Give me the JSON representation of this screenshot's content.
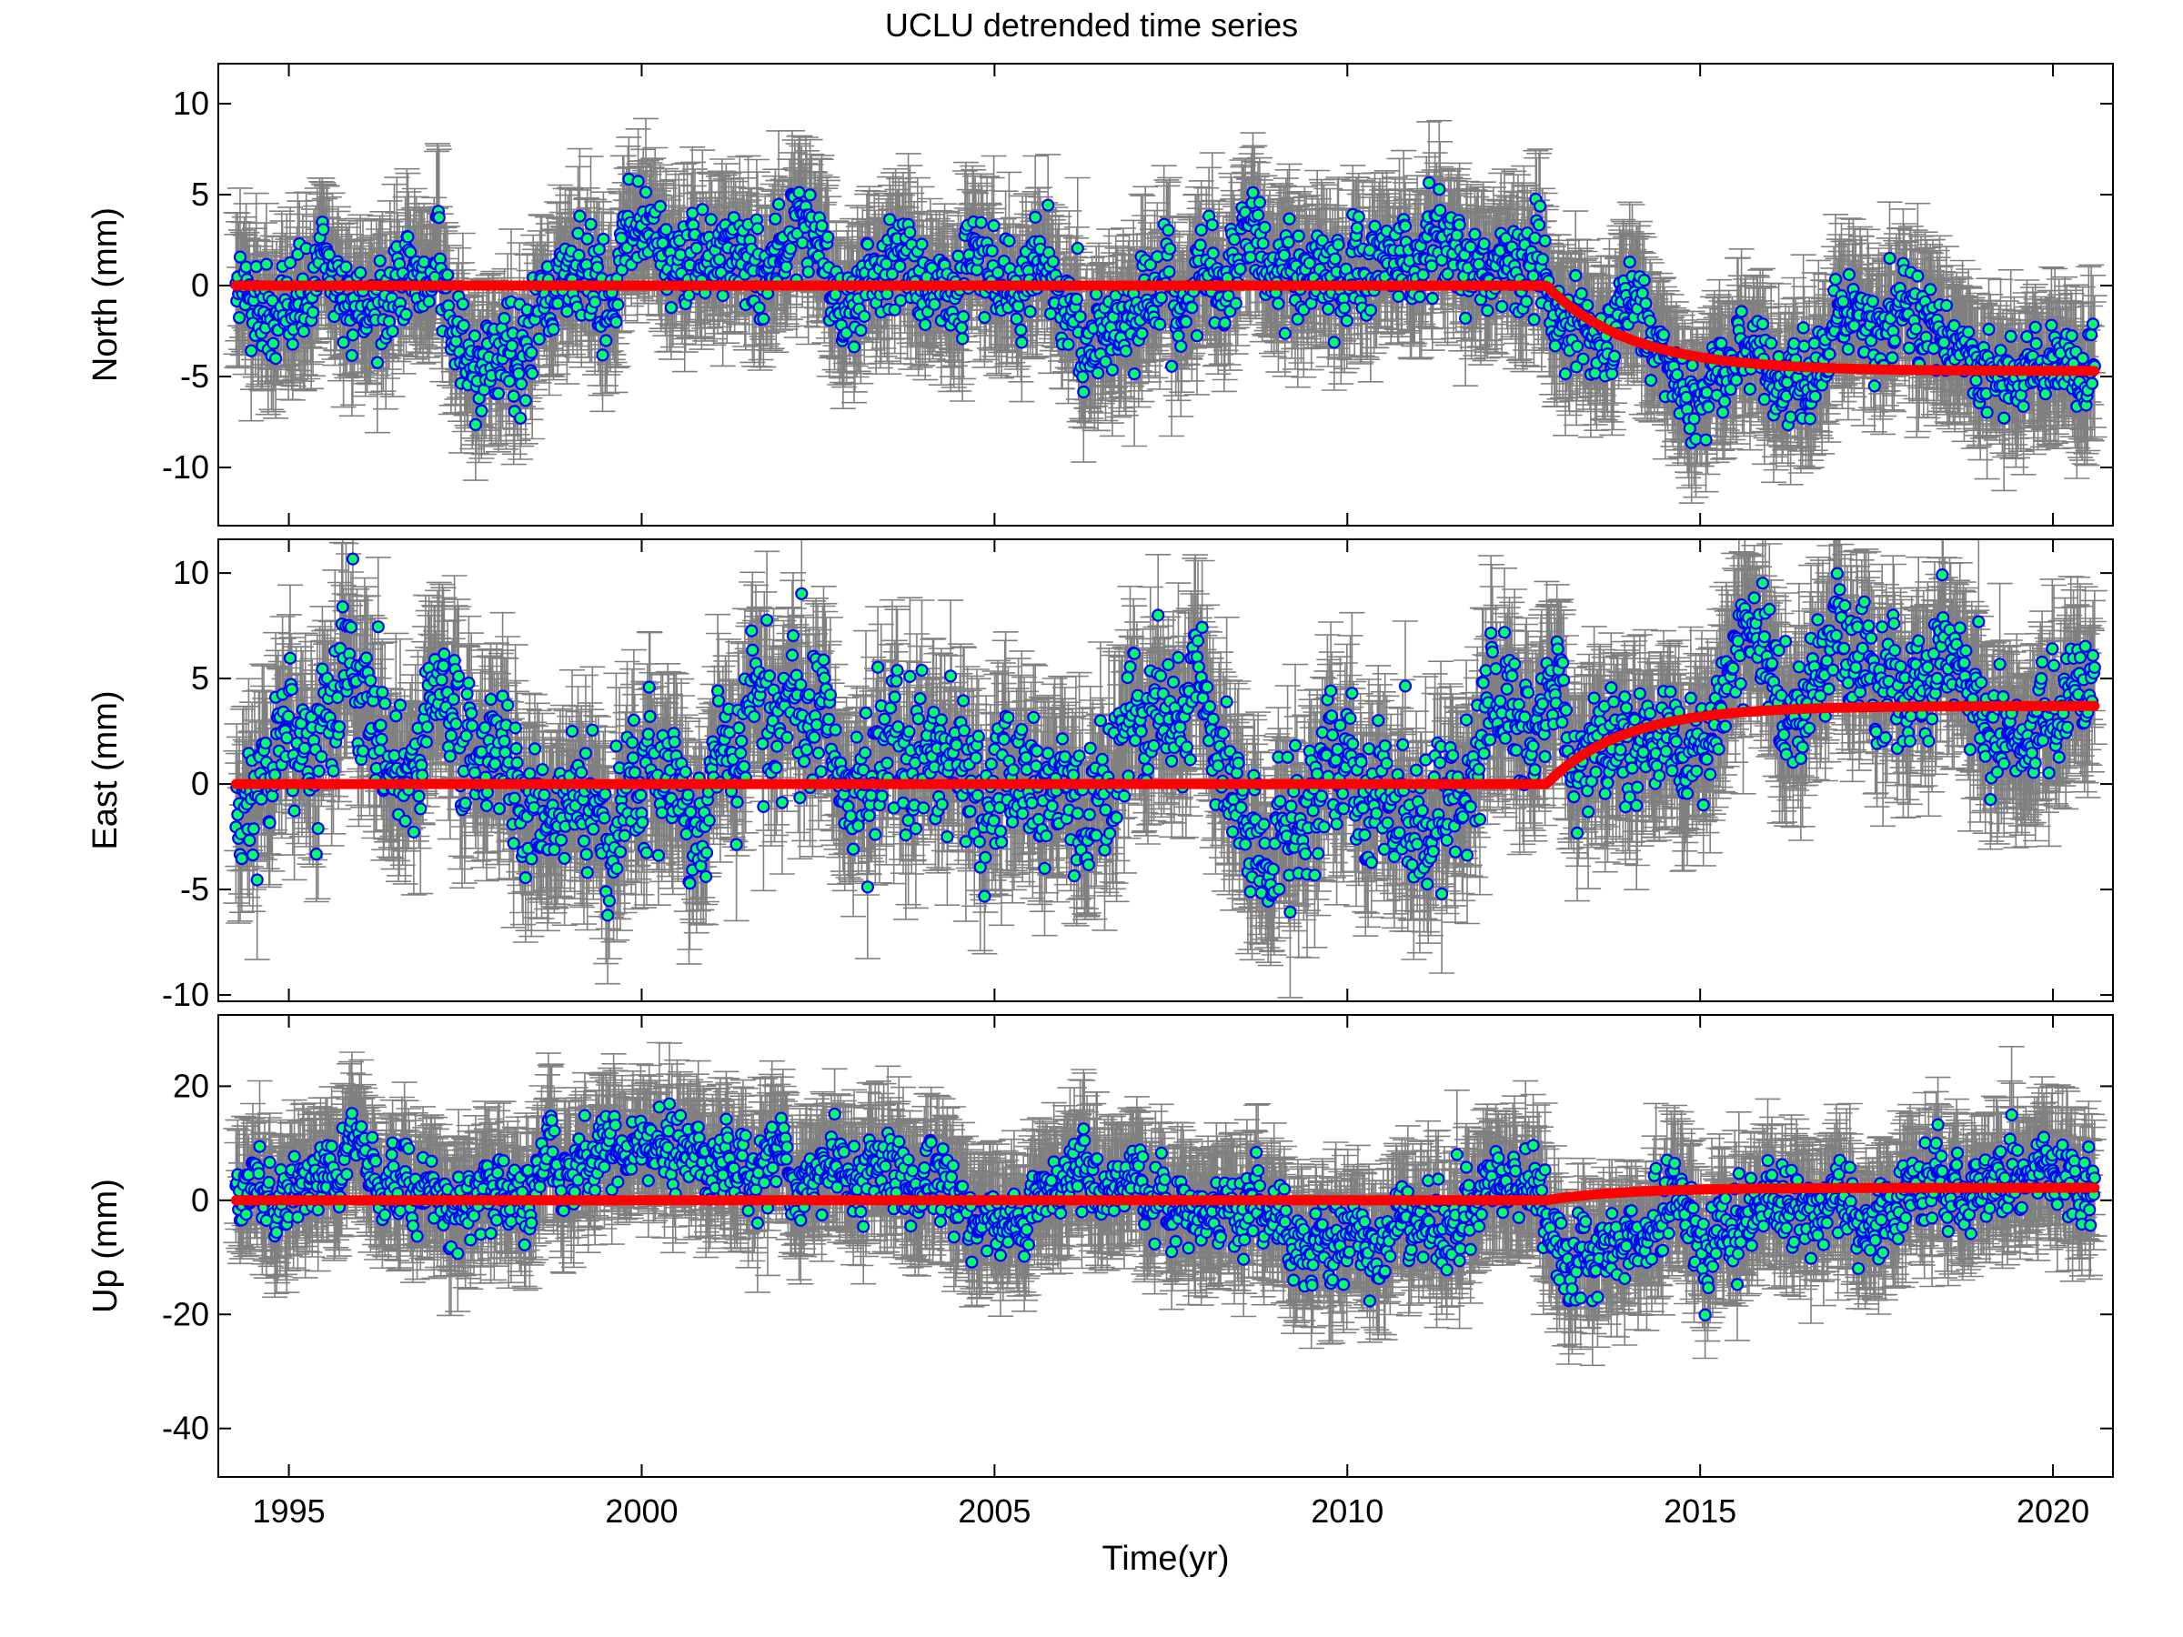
{
  "title": "UCLU detrended time series",
  "colors": {
    "background": "#ffffff",
    "errorbar": "#808080",
    "marker_fill": "#00ff66",
    "marker_edge": "#0000ff",
    "model_line": "#ff0000",
    "frame": "#000000"
  },
  "chart_data": [
    {
      "type": "scatter",
      "panel": "north",
      "ylabel": "North (mm)",
      "xlabel": "",
      "xlim": [
        1994.0,
        2020.85
      ],
      "ylim": [
        -13.2,
        12.2
      ],
      "yticks": [
        10,
        5,
        0,
        -5,
        -10
      ],
      "xticks": [
        1995,
        2000,
        2005,
        2010,
        2015,
        2020
      ],
      "grid": false,
      "data_span": [
        1994.25,
        2020.6
      ],
      "observations": {
        "description_ranges": [
          {
            "x": [
              1994.25,
              2012.8
            ],
            "center": 0.0,
            "scatter_sd": 2.0,
            "errorbar_half": 3.0
          },
          {
            "x": [
              2012.8,
              2020.6
            ],
            "center": "model",
            "scatter_sd": 1.7,
            "errorbar_half": 3.0
          }
        ]
      },
      "model": {
        "name": "postseismic model",
        "flat_until": 2012.82,
        "flat_value": 0.0,
        "asymptote": -4.7,
        "tau_years": 1.2
      }
    },
    {
      "type": "scatter",
      "panel": "east",
      "ylabel": "East (mm)",
      "xlabel": "",
      "xlim": [
        1994.0,
        2020.85
      ],
      "ylim": [
        -10.3,
        11.6
      ],
      "yticks": [
        10,
        5,
        0,
        -5,
        -10
      ],
      "xticks": [
        1995,
        2000,
        2005,
        2010,
        2015,
        2020
      ],
      "grid": false,
      "data_span": [
        1994.25,
        2020.6
      ],
      "observations": {
        "description_ranges": [
          {
            "x": [
              1994.25,
              2012.8
            ],
            "center": 0.0,
            "scatter_sd": 2.6,
            "errorbar_half": 3.0
          },
          {
            "x": [
              2012.8,
              2020.6
            ],
            "center": "model",
            "scatter_sd": 2.0,
            "errorbar_half": 3.0
          }
        ]
      },
      "model": {
        "name": "postseismic model",
        "flat_until": 2012.82,
        "flat_value": 0.0,
        "asymptote": 3.7,
        "tau_years": 1.1
      }
    },
    {
      "type": "scatter",
      "panel": "up",
      "ylabel": "Up (mm)",
      "xlabel": "Time(yr)",
      "xlim": [
        1994.0,
        2020.85
      ],
      "ylim": [
        -48.5,
        32.5
      ],
      "yticks": [
        20,
        0,
        -20,
        -40
      ],
      "xticks": [
        1995,
        2000,
        2005,
        2010,
        2015,
        2020
      ],
      "grid": false,
      "data_span": [
        1994.25,
        2020.6
      ],
      "observations": {
        "description_ranges": [
          {
            "x": [
              1994.25,
              2012.8
            ],
            "center": 0.0,
            "scatter_sd": 5.0,
            "errorbar_half": 9.0
          },
          {
            "x": [
              2012.8,
              2020.6
            ],
            "center": "model",
            "scatter_sd": 5.0,
            "errorbar_half": 9.0
          }
        ]
      },
      "model": {
        "name": "postseismic model",
        "flat_until": 2012.82,
        "flat_value": 0.0,
        "asymptote": 2.2,
        "tau_years": 1.1
      }
    }
  ]
}
